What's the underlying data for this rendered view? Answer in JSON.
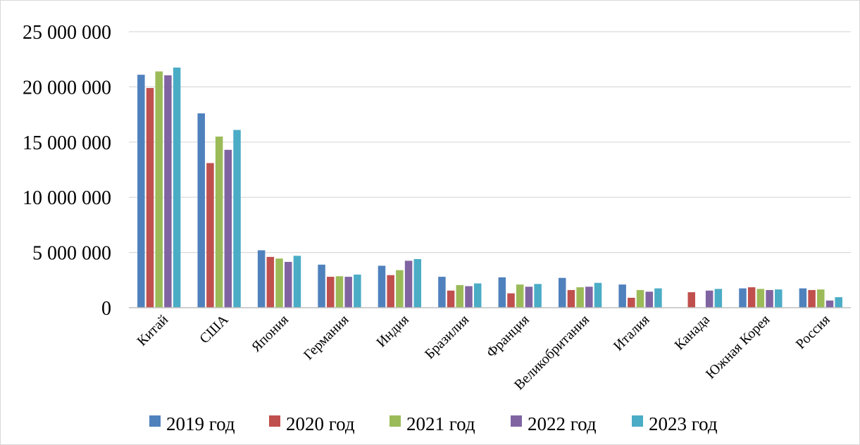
{
  "chart_data": {
    "type": "bar",
    "title": "",
    "xlabel": "",
    "ylabel": "",
    "ylim": [
      0,
      25000000
    ],
    "yticks": [
      0,
      5000000,
      10000000,
      15000000,
      20000000,
      25000000
    ],
    "ytick_labels": [
      "0",
      "5 000 000",
      "10 000 000",
      "15 000 000",
      "20 000 000",
      "25 000 000"
    ],
    "grid": true,
    "legend_position": "bottom",
    "categories": [
      "Китай",
      "США",
      "Япония",
      "Германия",
      "Индия",
      "Бразилия",
      "Франция",
      "Великобритания",
      "Италия",
      "Канада",
      "Южная Корея",
      "Россия"
    ],
    "series": [
      {
        "name": "2019 год",
        "color": "#4F81BD",
        "values": [
          21100000,
          17600000,
          5200000,
          3900000,
          3800000,
          2800000,
          2750000,
          2700000,
          2100000,
          0,
          1750000,
          1750000
        ]
      },
      {
        "name": "2020 год",
        "color": "#C0504D",
        "values": [
          19900000,
          13100000,
          4600000,
          2800000,
          2950000,
          1550000,
          1300000,
          1600000,
          900000,
          1400000,
          1850000,
          1600000
        ]
      },
      {
        "name": "2021 год",
        "color": "#9BBB59",
        "values": [
          21400000,
          15500000,
          4450000,
          2850000,
          3400000,
          2050000,
          2100000,
          1850000,
          1600000,
          0,
          1700000,
          1650000
        ]
      },
      {
        "name": "2022 год",
        "color": "#8064A2",
        "values": [
          21050000,
          14300000,
          4150000,
          2800000,
          4250000,
          1950000,
          1900000,
          1900000,
          1450000,
          1550000,
          1600000,
          650000
        ]
      },
      {
        "name": "2023 год",
        "color": "#4BACC6",
        "values": [
          21750000,
          16100000,
          4700000,
          3000000,
          4400000,
          2200000,
          2150000,
          2250000,
          1750000,
          1700000,
          1650000,
          950000
        ]
      }
    ]
  }
}
